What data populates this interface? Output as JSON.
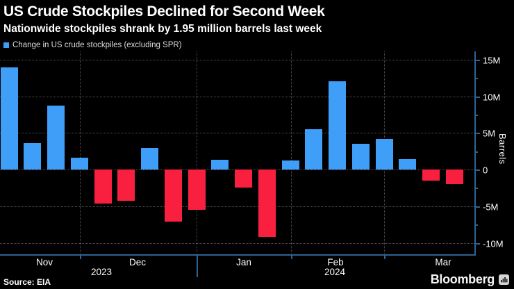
{
  "header": {
    "title": "US Crude Stockpiles Declined for Second Week",
    "subtitle": "Nationwide stockpiles shrank by 1.95 million barrels last week"
  },
  "legend": {
    "label": "Change in US crude stockpiles (excluding SPR)",
    "swatch_color": "#3e9ef8"
  },
  "chart_data": {
    "type": "bar",
    "series_name": "Change in US crude stockpiles (excluding SPR)",
    "unit": "million barrels (weekly change)",
    "values": [
      13.9,
      3.6,
      8.7,
      1.6,
      -4.6,
      -4.3,
      2.9,
      -7.1,
      -5.5,
      1.3,
      -2.5,
      -9.2,
      1.2,
      5.5,
      12.0,
      3.5,
      4.2,
      1.4,
      -1.5,
      -1.95
    ],
    "positive_color": "#3e9ef8",
    "negative_color": "#f9203f",
    "x_axis": {
      "month_labels": [
        "Nov",
        "Dec",
        "Jan",
        "Feb",
        "Mar"
      ],
      "year_labels": [
        "2023",
        "2024"
      ]
    },
    "y_axis": {
      "label": "Barrels",
      "tick_labels": [
        "15M",
        "10M",
        "5M",
        "0",
        "-5M",
        "-10M"
      ],
      "tick_values": [
        15,
        10,
        5,
        0,
        -5,
        -10
      ],
      "ylim": [
        -11.7,
        16.1
      ],
      "grid": true
    },
    "legend_position": "top-left"
  },
  "footer": {
    "source": "Source: EIA",
    "brand": "Bloomberg"
  },
  "colors": {
    "background": "#000000",
    "axis": "#2e6493",
    "gridline": "#525252",
    "text": "#ffffff"
  }
}
